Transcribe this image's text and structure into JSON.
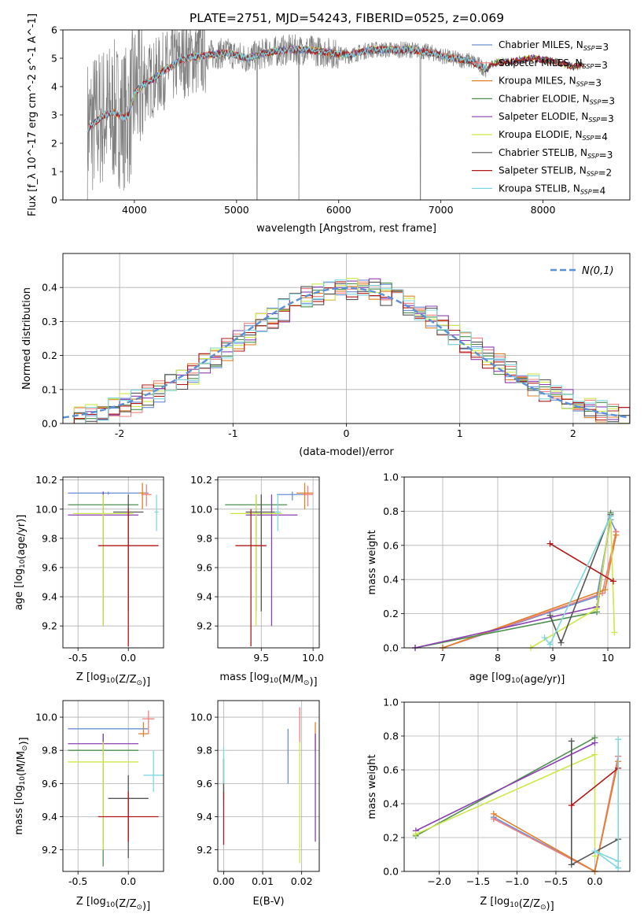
{
  "page_title": "PLATE=2751, MJD=54243, FIBERID=0525, z=0.069",
  "colors": {
    "Chabrier MILES": "#6b8fd6",
    "Salpeter MILES": "#f07f7f",
    "Kroupa MILES": "#e0802a",
    "Chabrier ELODIE": "#4f8f4f",
    "Salpeter ELODIE": "#8a3fb0",
    "Kroupa ELODIE": "#cce84a",
    "Chabrier STELIB": "#555555",
    "Salpeter STELIB": "#b01818",
    "Kroupa STELIB": "#7fd8e0",
    "data": "#808080",
    "gaussian": "#5b8fd6"
  },
  "chart_data": [
    {
      "type": "line",
      "title": "PLATE=2751, MJD=54243, FIBERID=0525, z=0.069",
      "xlabel": "wavelength [Angstrom, rest frame]",
      "ylabel": "Flux [f_λ 10^-17 erg cm^-2 s^-1 A^-1]",
      "xlim": [
        3300,
        8850
      ],
      "ylim": [
        0,
        6
      ],
      "xticks": [
        4000,
        5000,
        6000,
        7000,
        8000
      ],
      "yticks": [
        0,
        1,
        2,
        3,
        4,
        5,
        6
      ],
      "legend": "top-right",
      "continuum": {
        "x": [
          3540,
          3600,
          3700,
          3800,
          3900,
          3950,
          4000,
          4100,
          4200,
          4300,
          4400,
          4500,
          4700,
          4900,
          5100,
          5300,
          5500,
          5700,
          5900,
          6100,
          6300,
          6500,
          6700,
          6900,
          7100,
          7300,
          7450,
          7500,
          7700,
          7900,
          8100,
          8300,
          8400
        ],
        "y": [
          2.5,
          2.7,
          3.0,
          3.1,
          2.9,
          3.0,
          3.8,
          4.1,
          4.3,
          4.6,
          4.8,
          5.0,
          5.1,
          5.2,
          5.0,
          5.2,
          5.3,
          5.3,
          5.2,
          5.1,
          5.3,
          5.3,
          5.3,
          5.2,
          5.0,
          4.9,
          4.6,
          4.8,
          4.9,
          5.0,
          4.9,
          4.7,
          4.8
        ]
      },
      "series": [
        {
          "name": "Chabrier MILES, N_SSP=3",
          "model": "Chabrier MILES"
        },
        {
          "name": "Salpeter MILES, N_SSP=3",
          "model": "Salpeter MILES"
        },
        {
          "name": "Kroupa MILES, N_SSP=3",
          "model": "Kroupa MILES"
        },
        {
          "name": "Chabrier ELODIE, N_SSP=3",
          "model": "Chabrier ELODIE"
        },
        {
          "name": "Salpeter ELODIE, N_SSP=3",
          "model": "Salpeter ELODIE"
        },
        {
          "name": "Kroupa ELODIE, N_SSP=4",
          "model": "Kroupa ELODIE"
        },
        {
          "name": "Chabrier STELIB, N_SSP=3",
          "model": "Chabrier STELIB"
        },
        {
          "name": "Salpeter STELIB, N_SSP=2",
          "model": "Salpeter STELIB"
        },
        {
          "name": "Kroupa STELIB, N_SSP=4",
          "model": "Kroupa STELIB"
        }
      ]
    },
    {
      "type": "bar",
      "xlabel": "(data-model)/error",
      "ylabel": "Normed distribution",
      "xlim": [
        -2.5,
        2.5
      ],
      "ylim": [
        0,
        0.5
      ],
      "xticks": [
        -2,
        -1,
        0,
        1,
        2
      ],
      "yticks": [
        0.0,
        0.1,
        0.2,
        0.3,
        0.4
      ],
      "grid": true,
      "legend": "top-right",
      "legend_label": "N(0,1)",
      "bin_width": 0.1,
      "bin_start": -2.5
    },
    {
      "type": "scatter",
      "xlabel": "Z [log10(Z/Z⊙)]",
      "ylabel": "age  [log10(age/yr)]",
      "xlim": [
        -0.65,
        0.35
      ],
      "ylim": [
        9.05,
        10.22
      ],
      "xticks": [
        -0.5,
        0.0
      ],
      "yticks": [
        9.2,
        9.4,
        9.6,
        9.8,
        10.0,
        10.2
      ],
      "points": [
        {
          "model": "Chabrier MILES",
          "x": -0.2,
          "y": 10.11,
          "xerr": 0.4,
          "ymin": 10.1,
          "ymax": 10.12
        },
        {
          "model": "Salpeter MILES",
          "x": 0.18,
          "y": 10.1,
          "xerr": 0.05,
          "ymin": 10.02,
          "ymax": 10.17
        },
        {
          "model": "Kroupa MILES",
          "x": 0.14,
          "y": 10.11,
          "xerr": 0.03,
          "ymin": 10.0,
          "ymax": 10.18
        },
        {
          "model": "Chabrier ELODIE",
          "x": -0.25,
          "y": 10.03,
          "xerr": 0.35,
          "ymin": 9.3,
          "ymax": 10.12
        },
        {
          "model": "Salpeter ELODIE",
          "x": -0.25,
          "y": 9.96,
          "xerr": 0.35,
          "ymin": 9.2,
          "ymax": 10.12
        },
        {
          "model": "Kroupa ELODIE",
          "x": -0.25,
          "y": 9.97,
          "xerr": 0.3,
          "ymin": 9.2,
          "ymax": 10.1
        },
        {
          "model": "Chabrier STELIB",
          "x": 0.0,
          "y": 9.98,
          "xerr": 0.15,
          "ymin": 9.3,
          "ymax": 10.1
        },
        {
          "model": "Salpeter STELIB",
          "x": 0.0,
          "y": 9.75,
          "xerr": 0.3,
          "ymin": 9.06,
          "ymax": 10.0
        },
        {
          "model": "Kroupa STELIB",
          "x": 0.28,
          "y": 9.98,
          "xerr": 0.02,
          "ymin": 9.85,
          "ymax": 10.1
        }
      ]
    },
    {
      "type": "scatter",
      "xlabel": "mass [log10(M/M⊙)]",
      "ylabel": "",
      "xlim": [
        9.08,
        10.06
      ],
      "ylim": [
        9.05,
        10.22
      ],
      "xticks": [
        9.5,
        10.0
      ],
      "yticks": [
        9.2,
        9.4,
        9.6,
        9.8,
        10.0,
        10.2
      ],
      "points": [
        {
          "model": "Chabrier MILES",
          "x": 9.8,
          "y": 10.1,
          "xerr": 0.15,
          "ymin": 10.06,
          "ymax": 10.12
        },
        {
          "model": "Salpeter MILES",
          "x": 9.95,
          "y": 10.1,
          "xerr": 0.05,
          "ymin": 10.02,
          "ymax": 10.16
        },
        {
          "model": "Kroupa MILES",
          "x": 9.92,
          "y": 10.11,
          "xerr": 0.08,
          "ymin": 10.0,
          "ymax": 10.18
        },
        {
          "model": "Chabrier ELODIE",
          "x": 9.45,
          "y": 10.03,
          "xerr": 0.3,
          "ymin": 9.3,
          "ymax": 10.1
        },
        {
          "model": "Salpeter ELODIE",
          "x": 9.6,
          "y": 9.96,
          "xerr": 0.25,
          "ymin": 9.2,
          "ymax": 10.1
        },
        {
          "model": "Kroupa ELODIE",
          "x": 9.45,
          "y": 9.97,
          "xerr": 0.25,
          "ymin": 9.2,
          "ymax": 10.1
        },
        {
          "model": "Chabrier STELIB",
          "x": 9.5,
          "y": 9.98,
          "xerr": 0.15,
          "ymin": 9.3,
          "ymax": 10.1
        },
        {
          "model": "Salpeter STELIB",
          "x": 9.4,
          "y": 9.75,
          "xerr": 0.15,
          "ymin": 9.06,
          "ymax": 10.0
        },
        {
          "model": "Kroupa STELIB",
          "x": 9.66,
          "y": 9.98,
          "xerr": 0.03,
          "ymin": 9.85,
          "ymax": 10.1
        }
      ]
    },
    {
      "type": "line",
      "xlabel": "age  [log10(age/yr)]",
      "ylabel": "mass weight",
      "xlim": [
        6.3,
        10.4
      ],
      "ylim": [
        0,
        1
      ],
      "xticks": [
        7,
        8,
        9,
        10
      ],
      "yticks": [
        0.0,
        0.2,
        0.4,
        0.6,
        0.8,
        1.0
      ],
      "grid": true,
      "series": [
        {
          "model": "Chabrier MILES",
          "x": [
            7.0,
            9.8,
            10.05,
            10.15
          ],
          "y": [
            0.0,
            0.3,
            0.75,
            0.68
          ]
        },
        {
          "model": "Salpeter MILES",
          "x": [
            7.0,
            9.9,
            10.15
          ],
          "y": [
            0.0,
            0.32,
            0.68
          ]
        },
        {
          "model": "Kroupa MILES",
          "x": [
            7.0,
            9.95,
            10.15
          ],
          "y": [
            0.0,
            0.34,
            0.66
          ]
        },
        {
          "model": "Chabrier ELODIE",
          "x": [
            6.5,
            9.8,
            10.05
          ],
          "y": [
            0.0,
            0.21,
            0.79
          ]
        },
        {
          "model": "Salpeter ELODIE",
          "x": [
            6.5,
            9.8,
            10.05
          ],
          "y": [
            0.0,
            0.24,
            0.77
          ]
        },
        {
          "model": "Kroupa ELODIE",
          "x": [
            8.6,
            9.8,
            10.05,
            10.12
          ],
          "y": [
            0.0,
            0.23,
            0.78,
            0.09
          ]
        },
        {
          "model": "Chabrier STELIB",
          "x": [
            8.95,
            9.15,
            10.05
          ],
          "y": [
            0.19,
            0.03,
            0.78
          ]
        },
        {
          "model": "Salpeter STELIB",
          "x": [
            8.95,
            10.1
          ],
          "y": [
            0.61,
            0.39
          ]
        },
        {
          "model": "Kroupa STELIB",
          "x": [
            8.85,
            8.95,
            10.05
          ],
          "y": [
            0.06,
            0.02,
            0.77
          ]
        }
      ]
    },
    {
      "type": "scatter",
      "xlabel": "Z [log10(Z/Z⊙)]",
      "ylabel": "mass [log10(M/M⊙)]",
      "xlim": [
        -0.65,
        0.35
      ],
      "ylim": [
        9.07,
        10.1
      ],
      "xticks": [
        -0.5,
        0.0
      ],
      "yticks": [
        9.2,
        9.4,
        9.6,
        9.8,
        10.0
      ],
      "points": [
        {
          "model": "Chabrier MILES",
          "x": -0.2,
          "y": 9.93,
          "xerr": 0.4,
          "ymin": 9.93,
          "ymax": 9.93
        },
        {
          "model": "Salpeter MILES",
          "x": 0.2,
          "y": 9.99,
          "xerr": 0.06,
          "ymin": 9.9,
          "ymax": 10.04
        },
        {
          "model": "Kroupa MILES",
          "x": 0.15,
          "y": 9.9,
          "xerr": 0.05,
          "ymin": 9.88,
          "ymax": 9.97
        },
        {
          "model": "Chabrier ELODIE",
          "x": -0.25,
          "y": 9.8,
          "xerr": 0.35,
          "ymin": 9.1,
          "ymax": 9.9
        },
        {
          "model": "Salpeter ELODIE",
          "x": -0.25,
          "y": 9.84,
          "xerr": 0.35,
          "ymin": 9.25,
          "ymax": 9.9
        },
        {
          "model": "Kroupa ELODIE",
          "x": -0.25,
          "y": 9.73,
          "xerr": 0.35,
          "ymin": 9.2,
          "ymax": 9.85
        },
        {
          "model": "Chabrier STELIB",
          "x": 0.0,
          "y": 9.51,
          "xerr": 0.2,
          "ymin": 9.15,
          "ymax": 9.65
        },
        {
          "model": "Salpeter STELIB",
          "x": 0.0,
          "y": 9.4,
          "xerr": 0.3,
          "ymin": 9.25,
          "ymax": 9.55
        },
        {
          "model": "Kroupa STELIB",
          "x": 0.25,
          "y": 9.65,
          "xerr": 0.1,
          "ymin": 9.55,
          "ymax": 9.8
        }
      ]
    },
    {
      "type": "scatter",
      "xlabel": "E(B-V)",
      "ylabel": "",
      "xlim": [
        -0.0015,
        0.0245
      ],
      "ylim": [
        9.07,
        10.1
      ],
      "xticks": [
        0.0,
        0.01,
        0.02
      ],
      "xtick_labels": [
        "0.00",
        "0.01",
        "0.02"
      ],
      "yticks": [
        9.2,
        9.4,
        9.6,
        9.8,
        10.0
      ],
      "points": [
        {
          "model": "Chabrier MILES",
          "x": 0.0165,
          "ymin": 9.6,
          "ymax": 9.93
        },
        {
          "model": "Salpeter MILES",
          "x": 0.0195,
          "ymin": 9.85,
          "ymax": 10.06
        },
        {
          "model": "Kroupa MILES",
          "x": 0.0235,
          "ymin": 9.8,
          "ymax": 9.97
        },
        {
          "model": "Chabrier ELODIE",
          "x": 0.0,
          "ymin": 9.5,
          "ymax": 9.75
        },
        {
          "model": "Salpeter ELODIE",
          "x": 0.0235,
          "ymin": 9.25,
          "ymax": 9.9
        },
        {
          "model": "Kroupa ELODIE",
          "x": 0.0195,
          "ymin": 9.12,
          "ymax": 9.85
        },
        {
          "model": "Chabrier STELIB",
          "x": 0.0,
          "ymin": 9.55,
          "ymax": 9.75
        },
        {
          "model": "Salpeter STELIB",
          "x": 0.0,
          "ymin": 9.23,
          "ymax": 9.55
        },
        {
          "model": "Kroupa STELIB",
          "x": 0.0,
          "ymin": 9.6,
          "ymax": 9.82
        }
      ]
    },
    {
      "type": "line",
      "xlabel": "Z [log10(Z/Z⊙)]",
      "ylabel": "mass weight",
      "xlim": [
        -2.45,
        0.45
      ],
      "ylim": [
        0,
        1
      ],
      "xticks": [
        -2.0,
        -1.5,
        -1.0,
        -0.5,
        0.0
      ],
      "yticks": [
        0.0,
        0.2,
        0.4,
        0.6,
        0.8,
        1.0
      ],
      "grid": true,
      "series": [
        {
          "model": "Chabrier MILES",
          "x": [
            -1.3,
            0.0,
            0.3
          ],
          "y": [
            0.32,
            0.0,
            0.68
          ]
        },
        {
          "model": "Salpeter MILES",
          "x": [
            -1.3,
            0.0,
            0.3
          ],
          "y": [
            0.31,
            0.0,
            0.68
          ]
        },
        {
          "model": "Kroupa MILES",
          "x": [
            -1.3,
            0.0,
            0.3
          ],
          "y": [
            0.34,
            0.0,
            0.65
          ]
        },
        {
          "model": "Chabrier ELODIE",
          "x": [
            -2.3,
            0.0
          ],
          "y": [
            0.21,
            0.79
          ]
        },
        {
          "model": "Salpeter ELODIE",
          "x": [
            -2.3,
            0.0
          ],
          "y": [
            0.24,
            0.76
          ]
        },
        {
          "model": "Kroupa ELODIE",
          "x": [
            -2.3,
            0.0,
            0.0
          ],
          "y": [
            0.22,
            0.69,
            0.09
          ]
        },
        {
          "model": "Chabrier STELIB",
          "x": [
            -0.3,
            -0.3,
            0.3
          ],
          "y": [
            0.77,
            0.04,
            0.19
          ]
        },
        {
          "model": "Salpeter STELIB",
          "x": [
            -0.3,
            0.3
          ],
          "y": [
            0.39,
            0.61
          ]
        },
        {
          "model": "Kroupa STELIB",
          "x": [
            0.3,
            0.3,
            0.0,
            0.3
          ],
          "y": [
            0.78,
            0.02,
            0.12,
            0.06
          ]
        }
      ]
    }
  ]
}
